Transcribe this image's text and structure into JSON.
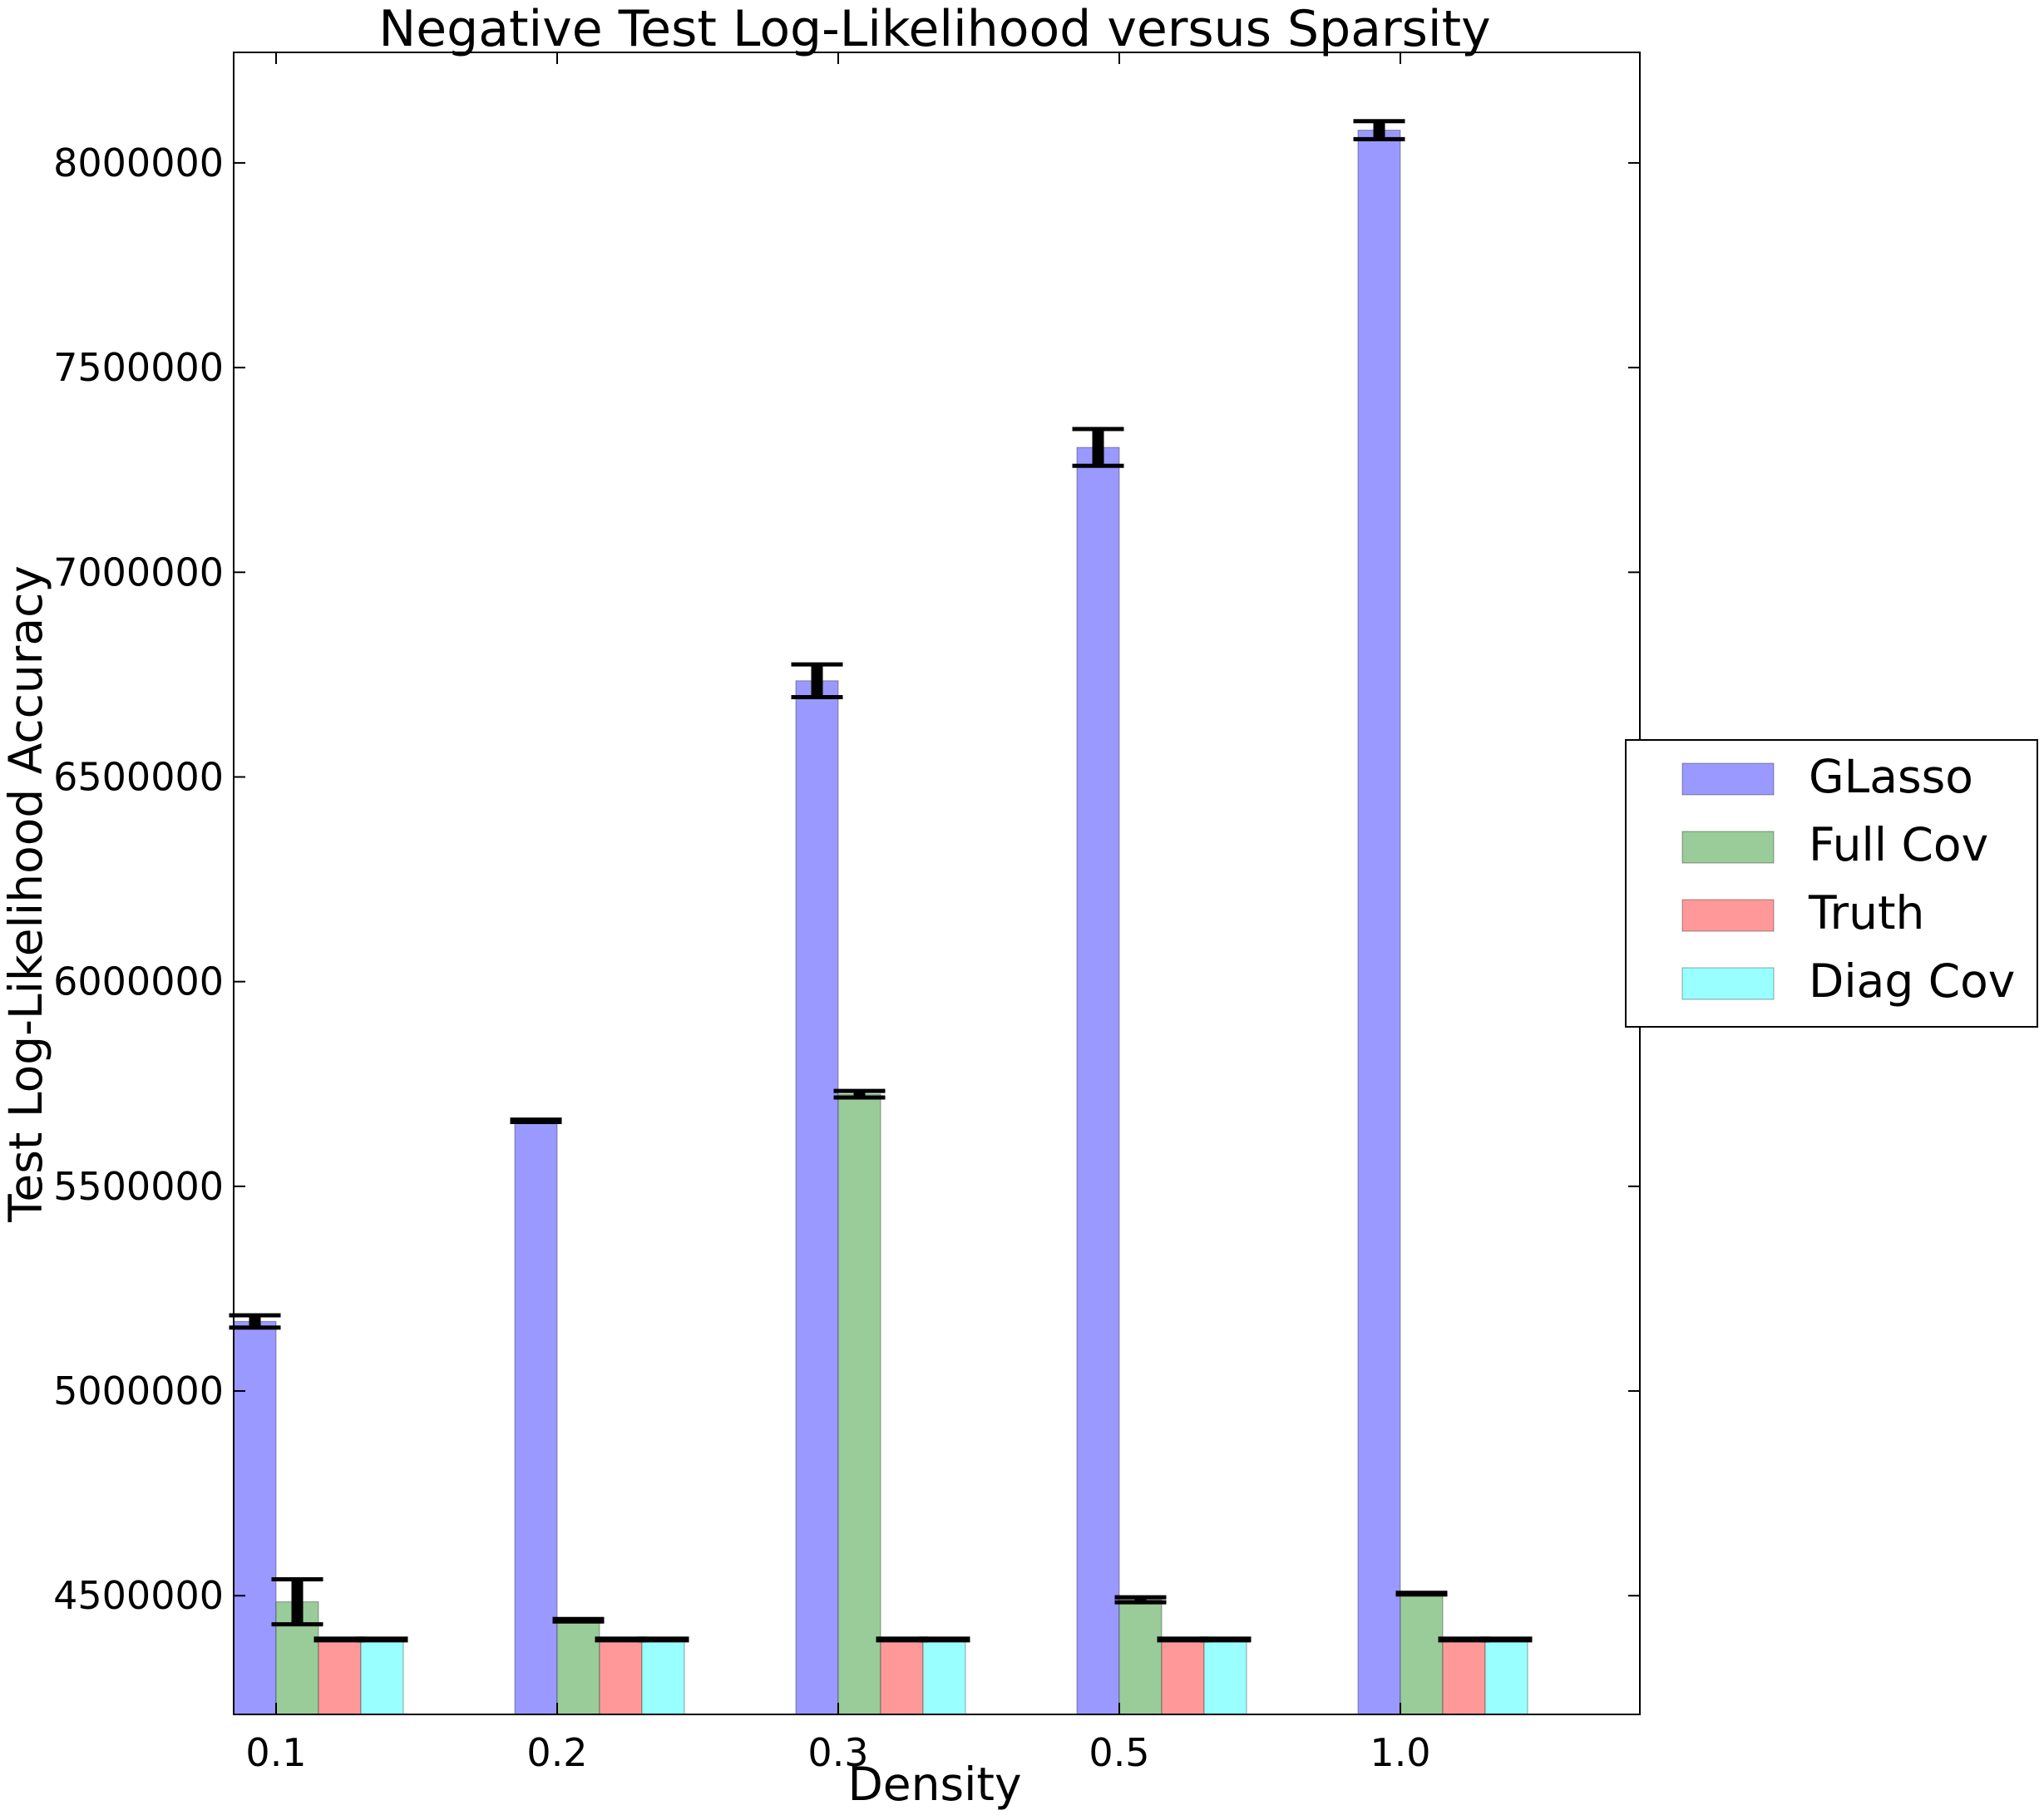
{
  "chart_data": {
    "type": "bar",
    "title": "Negative Test Log-Likelihood versus Sparsity",
    "xlabel": "Density",
    "ylabel": "Test Log-Likelihood Accuracy",
    "categories": [
      "0.1",
      "0.2",
      "0.3",
      "0.5",
      "1.0"
    ],
    "ylim": [
      4210000,
      8270000
    ],
    "yticks": [
      4500000,
      5000000,
      5500000,
      6000000,
      6500000,
      7000000,
      7500000,
      8000000
    ],
    "ytick_labels": [
      "4500000",
      "5000000",
      "5500000",
      "6000000",
      "6500000",
      "7000000",
      "7500000",
      "8000000"
    ],
    "series": [
      {
        "name": "GLasso",
        "color": "#9999ff",
        "values": [
          5170000,
          5660000,
          6735000,
          7305000,
          8080000
        ],
        "errors": [
          15000,
          3000,
          40000,
          45000,
          22000
        ]
      },
      {
        "name": "Full Cov",
        "color": "#99cc99",
        "values": [
          4485000,
          4440000,
          5725000,
          4490000,
          4505000
        ],
        "errors": [
          55000,
          3000,
          8000,
          6000,
          2000
        ]
      },
      {
        "name": "Truth",
        "color": "#ff9999",
        "values": [
          4393000,
          4393000,
          4393000,
          4393000,
          4393000
        ],
        "errors": [
          2000,
          2000,
          2000,
          2000,
          2000
        ]
      },
      {
        "name": "Diag Cov",
        "color": "#99ffff",
        "values": [
          4393000,
          4393000,
          4393000,
          4393000,
          4393000
        ],
        "errors": [
          2000,
          2000,
          2000,
          2000,
          2000
        ]
      }
    ],
    "grid": false,
    "legend_position": "outside-right"
  }
}
